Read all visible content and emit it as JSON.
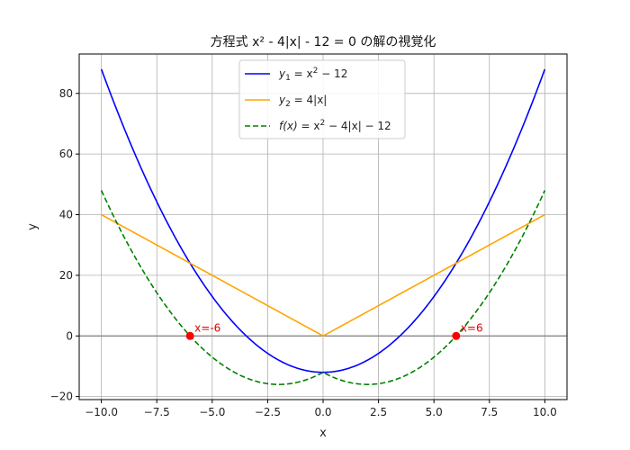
{
  "chart_data": {
    "type": "line",
    "title": "方程式 x² - 4|x| - 12 = 0 の解の視覚化",
    "xlabel": "x",
    "ylabel": "y",
    "xlim": [
      -11,
      11
    ],
    "ylim": [
      -21,
      93
    ],
    "xticks": [
      -10.0,
      -7.5,
      -5.0,
      -2.5,
      0.0,
      2.5,
      5.0,
      7.5,
      10.0
    ],
    "xtick_labels": [
      "−10.0",
      "−7.5",
      "−5.0",
      "−2.5",
      "0.0",
      "2.5",
      "5.0",
      "7.5",
      "10.0"
    ],
    "yticks": [
      -20,
      0,
      20,
      40,
      60,
      80
    ],
    "ytick_labels": [
      "−20",
      "0",
      "20",
      "40",
      "60",
      "80"
    ],
    "grid": true,
    "legend_position": "top-center",
    "x_domain": [
      -10,
      10
    ],
    "series": [
      {
        "name": "y1 = x² − 12",
        "formula": "x^2 - 12",
        "color": "#0000ff",
        "style": "solid"
      },
      {
        "name": "y2 = 4|x|",
        "formula": "4|x|",
        "color": "#ffa500",
        "style": "solid"
      },
      {
        "name": "f(x) = x² − 4|x| − 12",
        "formula": "x^2 - 4|x| - 12",
        "color": "#008000",
        "style": "dashed"
      }
    ],
    "legend_labels": [
      {
        "prefix": "y",
        "sub": "1",
        "rest": " = x",
        "sup": "2",
        "tail": " − 12"
      },
      {
        "prefix": "y",
        "sub": "2",
        "rest": " = 4|x|",
        "sup": "",
        "tail": ""
      },
      {
        "prefix": "f(x)",
        "sub": "",
        "rest": " = x",
        "sup": "2",
        "tail": " − 4|x| − 12"
      }
    ],
    "points": [
      {
        "x": -6,
        "y": 0,
        "label": "x=-6",
        "color": "#ff0000"
      },
      {
        "x": 6,
        "y": 0,
        "label": "x=6",
        "color": "#ff0000"
      }
    ],
    "hline": {
      "y": 0,
      "color": "#808080"
    }
  }
}
